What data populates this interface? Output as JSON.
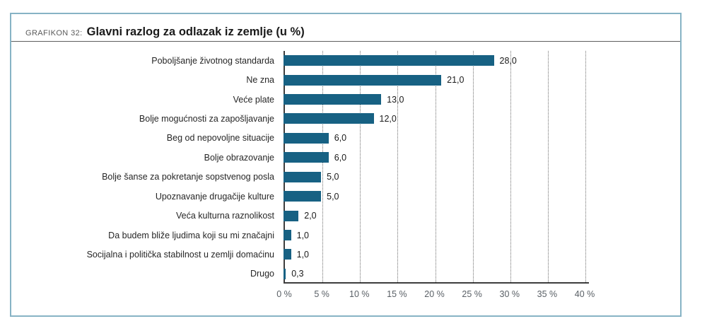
{
  "header": {
    "kicker": "GRAFIKON 32:",
    "title": "Glavni razlog za odlazak iz zemlje (u %)"
  },
  "chart_data": {
    "type": "bar",
    "orientation": "horizontal",
    "title": "Glavni razlog za odlazak iz zemlje (u %)",
    "categories": [
      "Poboljšanje životnog standarda",
      "Ne zna",
      "Veće plate",
      "Bolje mogućnosti za zapošljavanje",
      "Beg od nepovoljne situacije",
      "Bolje obrazovanje",
      "Bolje šanse za pokretanje sopstvenog posla",
      "Upoznavanje drugačije kulture",
      "Veća kulturna raznolikost",
      "Da budem bliže ljudima koji su mi značajni",
      "Socijalna i politička stabilnost u zemlji domaćinu",
      "Drugo"
    ],
    "values": [
      28.0,
      21.0,
      13.0,
      12.0,
      6.0,
      6.0,
      5.0,
      5.0,
      2.0,
      1.0,
      1.0,
      0.3
    ],
    "value_labels": [
      "28,0",
      "21,0",
      "13,0",
      "12,0",
      "6,0",
      "6,0",
      "5,0",
      "5,0",
      "2,0",
      "1,0",
      "1,0",
      "0,3"
    ],
    "x_ticks": [
      "0 %",
      "5 %",
      "10 %",
      "15 %",
      "20 %",
      "25 %",
      "30 %",
      "35 %",
      "40 %"
    ],
    "xlim": [
      0,
      40
    ],
    "grid": true,
    "legend": false,
    "bar_color": "#176183"
  },
  "colors": {
    "card_border": "#87b3c5",
    "bar": "#176183",
    "axis": "#3d3d3d",
    "gridline": "#6f6f6f",
    "kicker_text": "#5a5a5a",
    "title_text": "#1a1a1a",
    "category_text": "#262626",
    "tick_text": "#5a6066"
  }
}
